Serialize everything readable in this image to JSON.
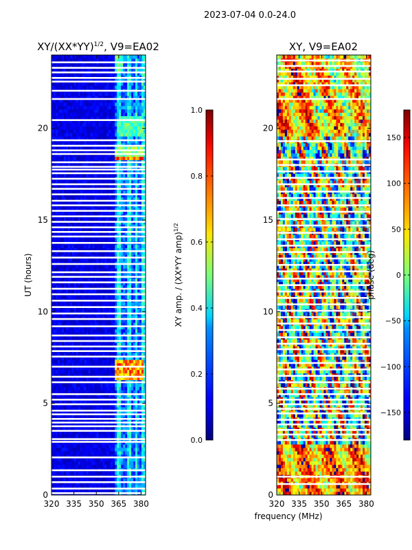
{
  "figure": {
    "suptitle": "2023-07-04 0.0-24.0",
    "shared_xlabel": "frequency (MHz)"
  },
  "chart_data": [
    {
      "type": "heatmap",
      "title": "XY/(XX*YY)",
      "title_power": "1/2",
      "title_tail": ", V9=EA02",
      "ylabel": "UT (hours)",
      "xlim": [
        320,
        383
      ],
      "ylim": [
        0,
        24
      ],
      "xticks": [
        "320",
        "335",
        "350",
        "365",
        "380"
      ],
      "xtick_values": [
        320,
        335,
        350,
        365,
        380
      ],
      "yticks": [
        "0",
        "5",
        "10",
        "15",
        "20"
      ],
      "ytick_values": [
        0,
        5,
        10,
        15,
        20
      ],
      "colormap": "jet",
      "colorbar": {
        "label": "XY amp. / (XX*YY amp)",
        "label_power": "1/2",
        "range": [
          0.0,
          1.0
        ],
        "ticks": [
          "0.0",
          "0.2",
          "0.4",
          "0.6",
          "0.8",
          "1.0"
        ],
        "tick_values": [
          0.0,
          0.2,
          0.4,
          0.6,
          0.8,
          1.0
        ]
      },
      "flagged_hours": [
        0.1,
        0.35,
        0.7,
        1.0,
        1.35,
        2.05,
        2.9,
        3.05,
        3.5,
        3.75,
        3.95,
        4.15,
        4.4,
        4.6,
        4.95,
        5.2,
        5.5,
        6.15,
        6.45,
        7.0,
        7.55,
        7.85,
        8.1,
        8.4,
        8.7,
        9.2,
        9.6,
        9.9,
        10.25,
        10.6,
        10.95,
        11.25,
        11.6,
        11.9,
        12.15,
        12.6,
        12.95,
        13.3,
        13.75,
        14.1,
        14.35,
        14.6,
        14.9,
        15.2,
        15.5,
        15.8,
        16.05,
        16.4,
        16.7,
        16.95,
        17.25,
        17.55,
        17.75,
        17.9,
        18.15,
        18.6,
        18.8,
        19.05,
        19.35,
        20.45,
        21.6,
        22.05,
        22.55,
        22.75,
        23.05,
        23.3,
        23.6
      ],
      "high_amp_spans": [
        {
          "t0": 6.3,
          "t1": 7.3,
          "f0": 363,
          "f1": 382,
          "level": 0.8
        },
        {
          "t0": 18.2,
          "t1": 18.5,
          "f0": 363,
          "f1": 382,
          "level": 0.85
        },
        {
          "t0": 18.5,
          "t1": 19.0,
          "f0": 363,
          "f1": 382,
          "level": 0.55
        },
        {
          "t0": 19.5,
          "t1": 20.6,
          "f0": 365,
          "f1": 381,
          "level": 0.5
        },
        {
          "t0": 23.0,
          "t1": 24.0,
          "f0": 363,
          "f1": 368,
          "level": 0.5
        }
      ],
      "notes": "low amplitude (~0.05-0.15) below 362 MHz; 0.2-0.5 striped channels above 362 MHz"
    },
    {
      "type": "heatmap",
      "title": "XY, V9=EA02",
      "xlim": [
        320,
        383
      ],
      "ylim": [
        0,
        24
      ],
      "xticks": [
        "320",
        "335",
        "350",
        "365",
        "380"
      ],
      "xtick_values": [
        320,
        335,
        350,
        365,
        380
      ],
      "yticks": [
        "0",
        "5",
        "10",
        "15",
        "20"
      ],
      "ytick_values": [
        0,
        5,
        10,
        15,
        20
      ],
      "colormap": "jet",
      "colorbar": {
        "label": "phase (deg)",
        "range": [
          -180,
          180
        ],
        "ticks": [
          "−150",
          "−100",
          "−50",
          "0",
          "50",
          "100",
          "150"
        ],
        "tick_values": [
          -150,
          -100,
          -50,
          0,
          50,
          100,
          150
        ]
      },
      "flagged_hours": [
        0.6,
        1.0,
        3.0,
        3.3,
        3.55,
        3.85,
        4.1,
        4.45,
        4.7,
        4.95,
        5.2,
        5.5,
        5.8,
        6.15,
        6.5,
        6.85,
        7.2,
        7.6,
        7.95,
        8.25,
        8.6,
        9.0,
        9.35,
        9.7,
        10.05,
        10.4,
        10.75,
        11.1,
        11.45,
        11.8,
        12.2,
        12.55,
        12.9,
        13.25,
        13.6,
        13.95,
        14.3,
        14.7,
        15.05,
        15.45,
        15.8,
        16.2,
        16.55,
        16.95,
        17.3,
        17.65,
        18.0,
        18.3,
        19.3,
        21.6,
        22.35,
        22.7,
        23.1,
        23.4,
        23.7
      ],
      "notes": "wrapped phase spanning full -180..180 range; smooth red/orange structure 0.3-2.8 h and 19.5-24 h"
    }
  ]
}
